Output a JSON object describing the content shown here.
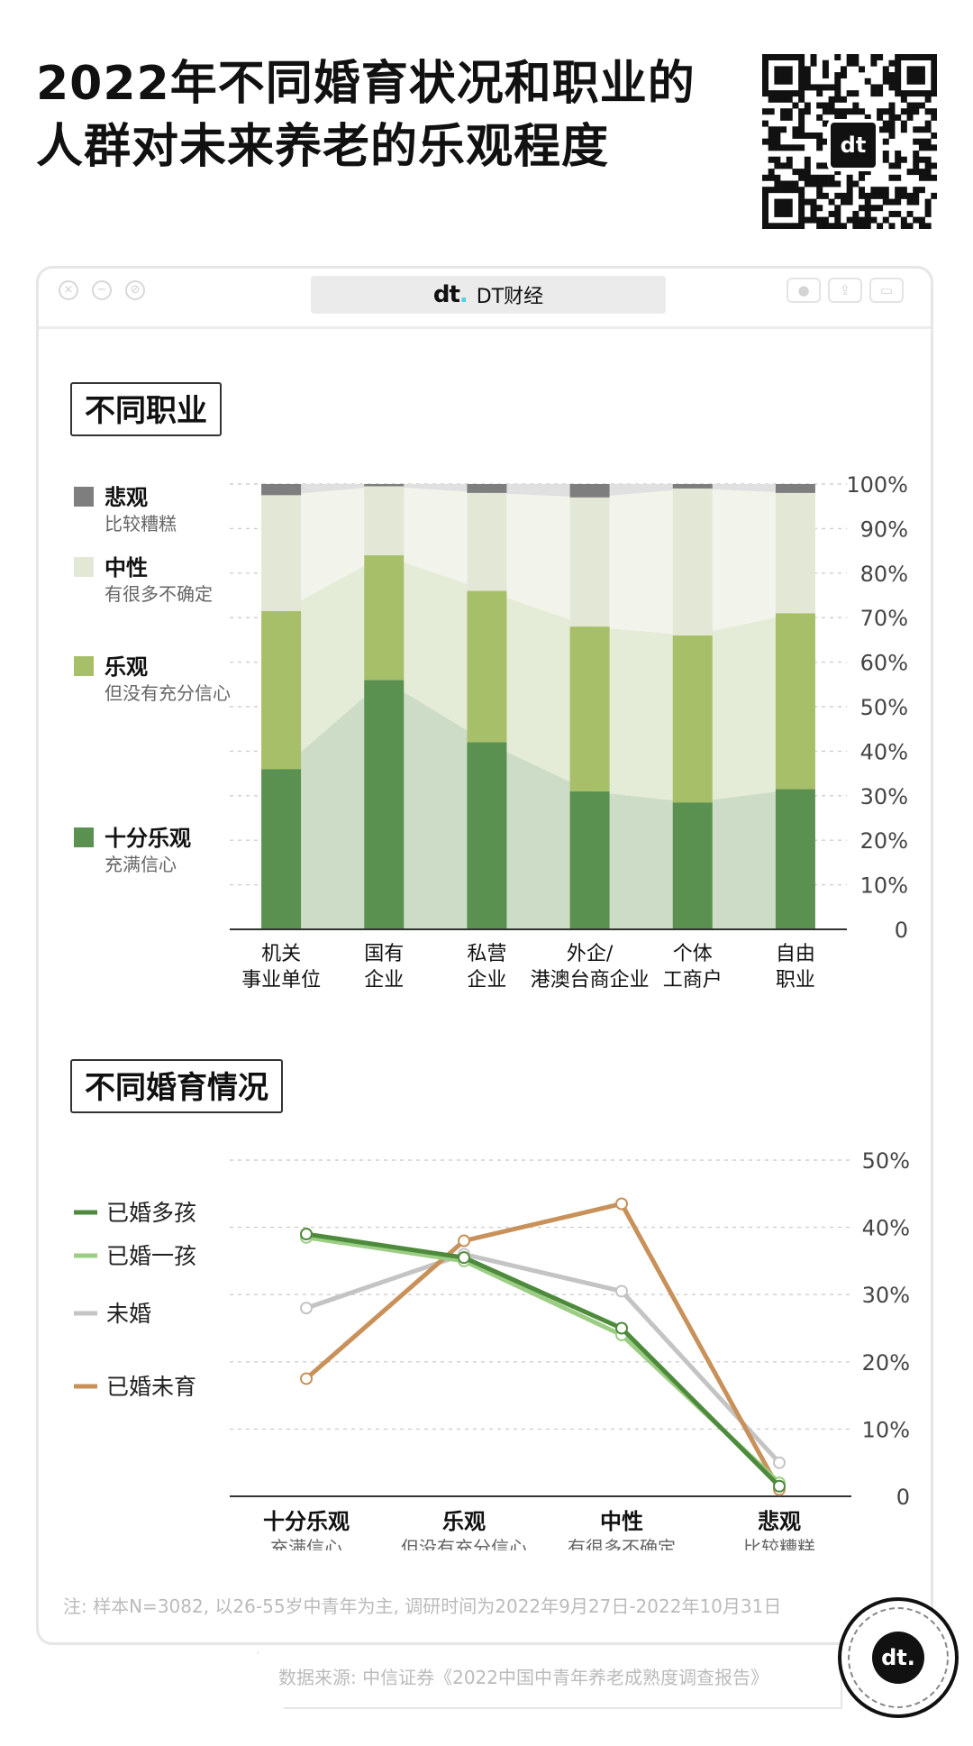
{
  "title_line1": "2022年不同婚育状况和职业的",
  "title_line2": "人群对未来养老的乐观程度",
  "window": {
    "brand_mark": "dt",
    "brand_name": "DT财经"
  },
  "colors": {
    "very_optimistic": "#5a9150",
    "optimistic": "#a8bf69",
    "neutral": "#e3e8d6",
    "pessimistic": "#7e7e7e",
    "married_multi": "#4e8a3c",
    "married_one": "#9ccd84",
    "unmarried": "#c4c4c4",
    "married_none": "#c9915a"
  },
  "sections": {
    "occupation_label": "不同职业",
    "marital_label": "不同婚育情况"
  },
  "chart_data": [
    {
      "type": "bar",
      "stacked": true,
      "categories": [
        [
          "机关",
          "事业单位"
        ],
        [
          "国有",
          "企业"
        ],
        [
          "私营",
          "企业"
        ],
        [
          "外企/",
          "港澳台商企业"
        ],
        [
          "个体",
          "工商户"
        ],
        [
          "自由",
          "职业"
        ]
      ],
      "series": [
        {
          "name": "十分乐观",
          "sub": "充满信心",
          "color_key": "very_optimistic",
          "values": [
            36,
            56,
            42,
            31,
            28.5,
            31.5
          ]
        },
        {
          "name": "乐观",
          "sub": "但没有充分信心",
          "color_key": "optimistic",
          "values": [
            35.5,
            28,
            34,
            37,
            37.5,
            39.5
          ]
        },
        {
          "name": "中性",
          "sub": "有很多不确定",
          "color_key": "neutral",
          "values": [
            26,
            15.5,
            22,
            29,
            33,
            27
          ]
        },
        {
          "name": "悲观",
          "sub": "比较糟糕",
          "color_key": "pessimistic",
          "values": [
            2.5,
            0.5,
            2,
            3,
            1,
            2
          ]
        }
      ],
      "yticks": [
        "0",
        "10%",
        "20%",
        "30%",
        "40%",
        "50%",
        "60%",
        "70%",
        "80%",
        "90%",
        "100%"
      ],
      "ylim": [
        0,
        100
      ],
      "legend_position": "left",
      "grid": true
    },
    {
      "type": "line",
      "categories": [
        [
          "十分乐观",
          "充满信心"
        ],
        [
          "乐观",
          "但没有充分信心"
        ],
        [
          "中性",
          "有很多不确定"
        ],
        [
          "悲观",
          "比较糟糕"
        ]
      ],
      "series": [
        {
          "name": "已婚多孩",
          "color_key": "married_multi",
          "values": [
            39,
            35.5,
            25,
            1.5
          ]
        },
        {
          "name": "已婚一孩",
          "color_key": "married_one",
          "values": [
            38.5,
            35,
            24,
            2
          ]
        },
        {
          "name": "未婚",
          "color_key": "unmarried",
          "values": [
            28,
            36,
            30.5,
            5
          ]
        },
        {
          "name": "已婚未育",
          "color_key": "married_none",
          "values": [
            17.5,
            38,
            43.5,
            1
          ]
        }
      ],
      "yticks": [
        "0",
        "10%",
        "20%",
        "30%",
        "40%",
        "50%"
      ],
      "ylim": [
        0,
        50
      ],
      "legend_position": "left",
      "grid": true
    }
  ],
  "footer": {
    "note": "注: 样本N=3082, 以26-55岁中青年为主, 调研时间为2022年9月27日-2022年10月31日",
    "source": "数据来源: 中信证券《2022中国中青年养老成熟度调查报告》"
  }
}
